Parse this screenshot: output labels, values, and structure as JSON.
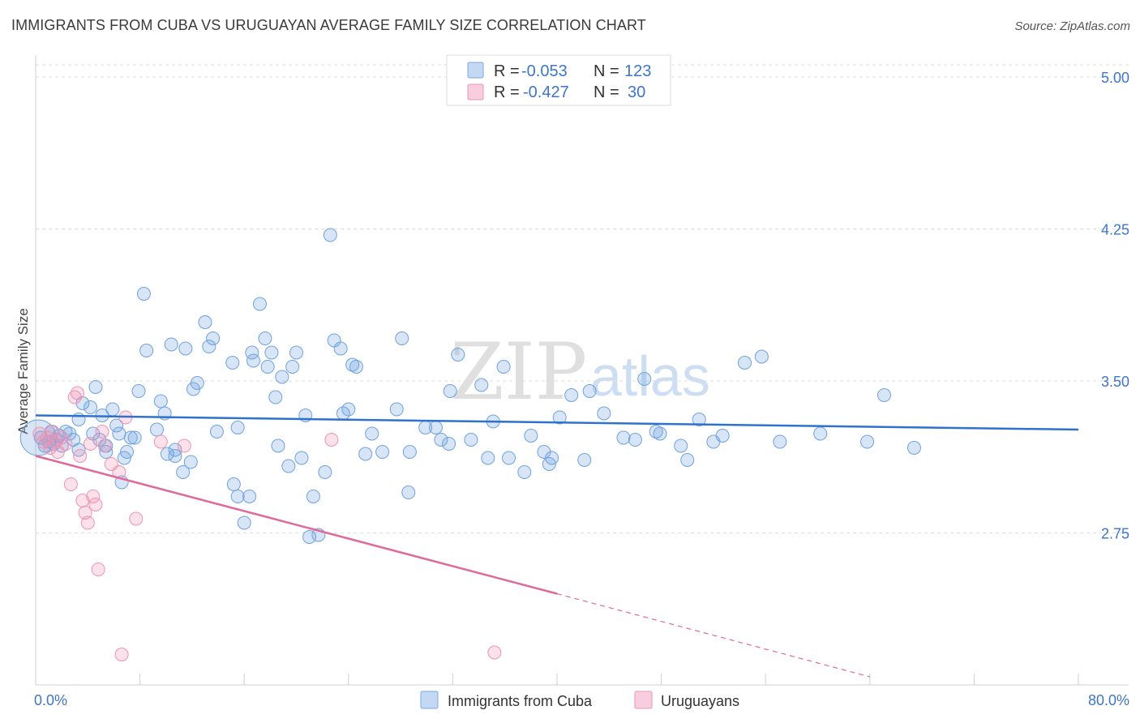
{
  "header": {
    "title": "IMMIGRANTS FROM CUBA VS URUGUAYAN AVERAGE FAMILY SIZE CORRELATION CHART",
    "source": "Source: ZipAtlas.com"
  },
  "watermark": {
    "zip": "ZIP",
    "atlas": "atlas"
  },
  "colors": {
    "blue": "#6fa3de",
    "blue_line": "#2f72cc",
    "pink": "#ee94b3",
    "pink_line": "#e0699a",
    "axis_text": "#3e76c8",
    "grid": "#dddddd"
  },
  "legend_box": {
    "rows": [
      {
        "r_label": "R =",
        "r_value": "-0.053",
        "n_label": "N =",
        "n_value": "123"
      },
      {
        "r_label": "R =",
        "r_value": "-0.427",
        "n_label": "N =",
        "n_value": "30"
      }
    ]
  },
  "bottom_legend": {
    "series1": "Immigrants from Cuba",
    "series2": "Uruguayans"
  },
  "chart_data": {
    "type": "scatter",
    "title": "IMMIGRANTS FROM CUBA VS URUGUAYAN AVERAGE FAMILY SIZE CORRELATION CHART",
    "xlabel": "",
    "ylabel": "Average Family Size",
    "xlim": [
      0,
      80
    ],
    "ylim": [
      2.0,
      5.06
    ],
    "x_tick_labels": [
      "0.0%",
      "80.0%"
    ],
    "y_ticks": [
      2.75,
      3.5,
      4.25,
      5.0
    ],
    "y_tick_labels": [
      "2.75",
      "3.50",
      "4.25",
      "5.00"
    ],
    "series": [
      {
        "name": "Immigrants from Cuba",
        "color": "#6fa3de",
        "trend": {
          "x": [
            0,
            80
          ],
          "y": [
            3.33,
            3.26
          ]
        },
        "points": [
          [
            0.4,
            3.22
          ],
          [
            0.7,
            3.18
          ],
          [
            1.0,
            3.2
          ],
          [
            1.2,
            3.25
          ],
          [
            1.4,
            3.19
          ],
          [
            1.6,
            3.21
          ],
          [
            1.8,
            3.23
          ],
          [
            2.0,
            3.18
          ],
          [
            2.3,
            3.25
          ],
          [
            2.6,
            3.24
          ],
          [
            2.9,
            3.21
          ],
          [
            3.3,
            3.16
          ],
          [
            3.3,
            3.31
          ],
          [
            3.6,
            3.39
          ],
          [
            4.2,
            3.37
          ],
          [
            4.4,
            3.24
          ],
          [
            4.6,
            3.47
          ],
          [
            4.9,
            3.21
          ],
          [
            5.1,
            3.33
          ],
          [
            5.4,
            3.15
          ],
          [
            5.4,
            3.18
          ],
          [
            5.9,
            3.36
          ],
          [
            6.2,
            3.28
          ],
          [
            6.4,
            3.24
          ],
          [
            6.6,
            3.0
          ],
          [
            6.8,
            3.12
          ],
          [
            7.0,
            3.15
          ],
          [
            7.3,
            3.22
          ],
          [
            7.6,
            3.22
          ],
          [
            7.9,
            3.45
          ],
          [
            8.3,
            3.93
          ],
          [
            8.5,
            3.65
          ],
          [
            9.3,
            3.26
          ],
          [
            9.6,
            3.4
          ],
          [
            9.9,
            3.34
          ],
          [
            10.1,
            3.14
          ],
          [
            10.4,
            3.68
          ],
          [
            10.7,
            3.13
          ],
          [
            10.7,
            3.16
          ],
          [
            11.3,
            3.05
          ],
          [
            11.5,
            3.66
          ],
          [
            11.9,
            3.1
          ],
          [
            12.1,
            3.46
          ],
          [
            12.4,
            3.49
          ],
          [
            13.0,
            3.79
          ],
          [
            13.3,
            3.67
          ],
          [
            13.6,
            3.71
          ],
          [
            13.9,
            3.25
          ],
          [
            15.2,
            2.99
          ],
          [
            15.1,
            3.59
          ],
          [
            15.5,
            2.93
          ],
          [
            16.0,
            2.8
          ],
          [
            15.5,
            3.27
          ],
          [
            16.4,
            2.93
          ],
          [
            16.6,
            3.64
          ],
          [
            16.7,
            3.6
          ],
          [
            17.2,
            3.88
          ],
          [
            17.6,
            3.71
          ],
          [
            17.8,
            3.57
          ],
          [
            18.1,
            3.64
          ],
          [
            18.4,
            3.42
          ],
          [
            18.6,
            3.18
          ],
          [
            18.9,
            3.52
          ],
          [
            19.4,
            3.08
          ],
          [
            19.7,
            3.57
          ],
          [
            20.0,
            3.64
          ],
          [
            20.4,
            3.12
          ],
          [
            20.7,
            3.33
          ],
          [
            21.0,
            2.73
          ],
          [
            21.3,
            2.93
          ],
          [
            21.7,
            2.74
          ],
          [
            22.2,
            3.05
          ],
          [
            22.6,
            4.22
          ],
          [
            22.9,
            3.7
          ],
          [
            23.4,
            3.66
          ],
          [
            23.6,
            3.34
          ],
          [
            24.0,
            3.36
          ],
          [
            24.3,
            3.58
          ],
          [
            24.6,
            3.57
          ],
          [
            25.3,
            3.14
          ],
          [
            25.8,
            3.24
          ],
          [
            26.6,
            3.15
          ],
          [
            27.7,
            3.36
          ],
          [
            28.1,
            3.71
          ],
          [
            28.6,
            2.95
          ],
          [
            28.7,
            3.15
          ],
          [
            29.9,
            3.27
          ],
          [
            30.7,
            3.27
          ],
          [
            31.1,
            3.21
          ],
          [
            31.7,
            3.19
          ],
          [
            31.8,
            3.45
          ],
          [
            32.4,
            3.63
          ],
          [
            33.4,
            3.21
          ],
          [
            34.2,
            3.48
          ],
          [
            34.7,
            3.12
          ],
          [
            35.1,
            3.3
          ],
          [
            35.9,
            3.57
          ],
          [
            36.3,
            3.12
          ],
          [
            37.5,
            3.05
          ],
          [
            38.0,
            3.23
          ],
          [
            39.0,
            3.15
          ],
          [
            39.4,
            3.09
          ],
          [
            39.6,
            3.12
          ],
          [
            40.2,
            3.32
          ],
          [
            41.1,
            3.43
          ],
          [
            42.1,
            3.11
          ],
          [
            42.5,
            3.45
          ],
          [
            43.6,
            3.34
          ],
          [
            45.1,
            3.22
          ],
          [
            46.0,
            3.21
          ],
          [
            46.7,
            3.51
          ],
          [
            47.6,
            3.25
          ],
          [
            47.9,
            3.24
          ],
          [
            49.5,
            3.18
          ],
          [
            50.0,
            3.11
          ],
          [
            50.9,
            3.31
          ],
          [
            52.0,
            3.2
          ],
          [
            52.7,
            3.23
          ],
          [
            54.4,
            3.59
          ],
          [
            55.7,
            3.62
          ],
          [
            57.1,
            3.2
          ],
          [
            60.2,
            3.24
          ],
          [
            63.8,
            3.2
          ],
          [
            65.1,
            3.43
          ],
          [
            67.4,
            3.17
          ]
        ]
      },
      {
        "name": "Uruguayans",
        "color": "#ee94b3",
        "trend": {
          "x": [
            0,
            40
          ],
          "y": [
            3.13,
            2.45
          ]
        },
        "trend_extension": {
          "x": [
            40,
            64
          ],
          "y": [
            2.45,
            2.04
          ]
        },
        "points": [
          [
            0.3,
            3.24
          ],
          [
            0.6,
            3.2
          ],
          [
            0.9,
            3.22
          ],
          [
            1.1,
            3.17
          ],
          [
            1.3,
            3.25
          ],
          [
            1.5,
            3.2
          ],
          [
            1.7,
            3.15
          ],
          [
            2.0,
            3.22
          ],
          [
            2.3,
            3.19
          ],
          [
            2.7,
            2.99
          ],
          [
            3.0,
            3.42
          ],
          [
            3.2,
            3.44
          ],
          [
            3.4,
            3.13
          ],
          [
            3.6,
            2.91
          ],
          [
            3.8,
            2.85
          ],
          [
            4.0,
            2.8
          ],
          [
            4.2,
            3.19
          ],
          [
            4.4,
            2.93
          ],
          [
            4.6,
            2.89
          ],
          [
            4.8,
            2.57
          ],
          [
            5.1,
            3.25
          ],
          [
            5.3,
            3.18
          ],
          [
            5.8,
            3.09
          ],
          [
            6.4,
            3.05
          ],
          [
            6.6,
            2.15
          ],
          [
            6.9,
            3.32
          ],
          [
            7.7,
            2.82
          ],
          [
            9.6,
            3.2
          ],
          [
            11.4,
            3.18
          ],
          [
            22.7,
            3.21
          ],
          [
            35.2,
            2.16
          ]
        ]
      }
    ]
  }
}
